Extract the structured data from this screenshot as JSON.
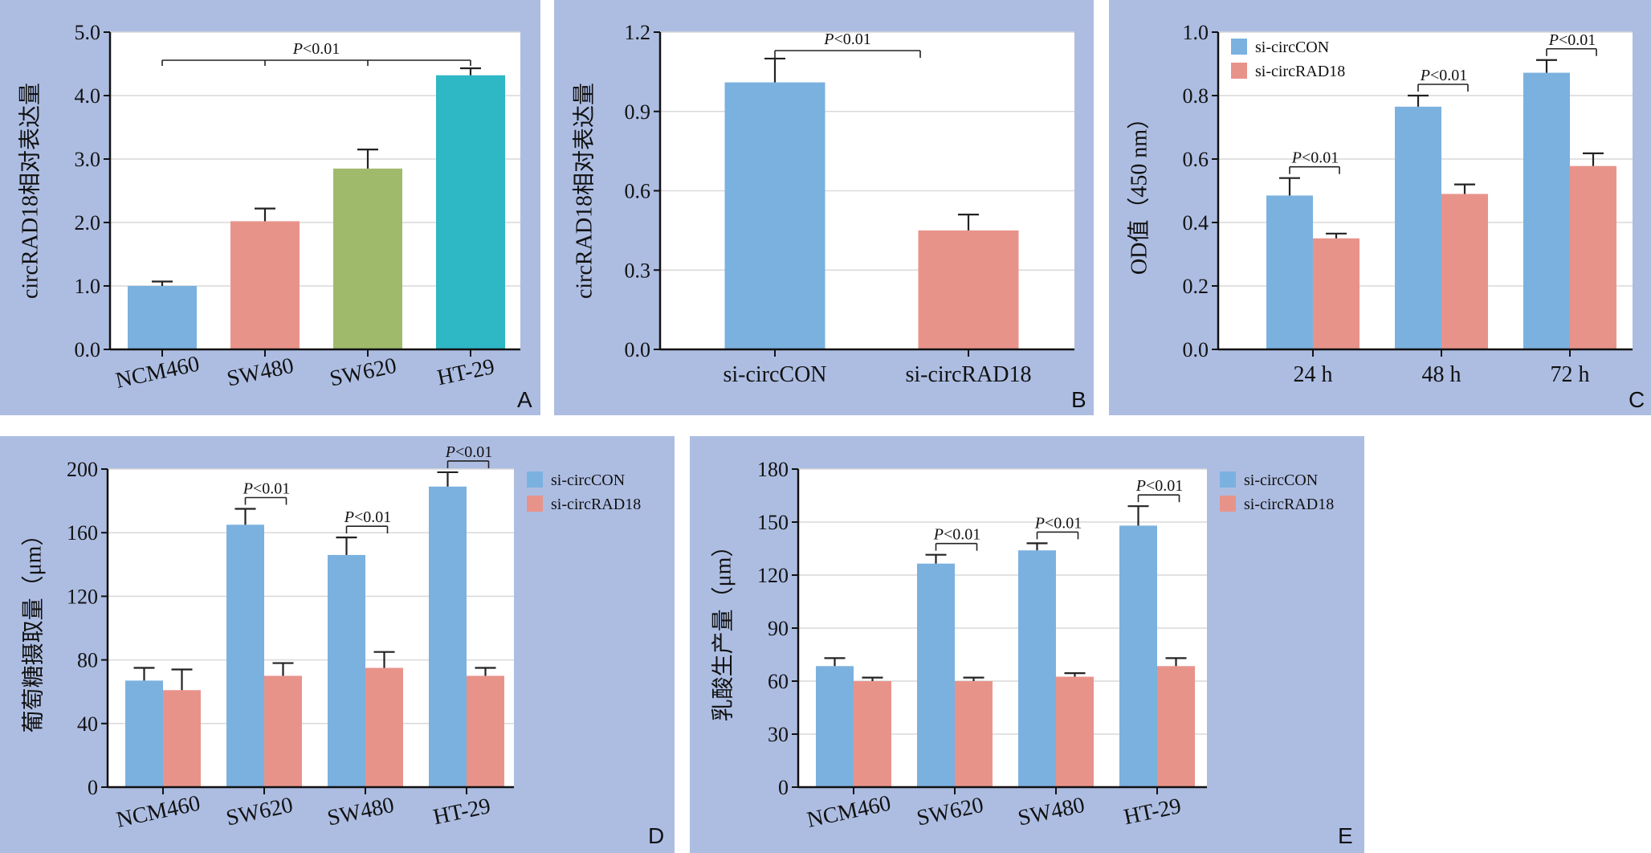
{
  "colors": {
    "panel_bg": "#adbde2",
    "plot_bg": "#ffffff",
    "grid": "#d9d9d9",
    "blue": "#7bb1df",
    "salmon": "#e8938a",
    "green": "#a0ba6c",
    "teal": "#2eb7c5"
  },
  "chart_data": [
    {
      "panel": "A",
      "type": "bar",
      "ylabel": "circRAD18相对表达量",
      "xlabel": "",
      "ylim": [
        0,
        5
      ],
      "yticks": [
        "0.0",
        "1.0",
        "2.0",
        "3.0",
        "4.0",
        "5.0"
      ],
      "categories": [
        "NCM460",
        "SW480",
        "SW620",
        "HT-29"
      ],
      "values": [
        1.0,
        2.02,
        2.85,
        4.32
      ],
      "errors": [
        0.07,
        0.2,
        0.3,
        0.11
      ],
      "bar_colors": [
        "#7bb1df",
        "#e8938a",
        "#a0ba6c",
        "#2eb7c5"
      ],
      "annotations": [
        {
          "text": "P<0.01",
          "italic_part": "P",
          "rest": "<0.01",
          "spans": "NCM460 to HT-29"
        }
      ],
      "grid": true
    },
    {
      "panel": "B",
      "type": "bar",
      "ylabel": "circRAD18相对表达量",
      "xlabel": "",
      "ylim": [
        0,
        1.2
      ],
      "yticks": [
        "0.0",
        "0.3",
        "0.6",
        "0.9",
        "1.2"
      ],
      "categories": [
        "si-circCON",
        "si-circRAD18"
      ],
      "values": [
        1.01,
        0.45
      ],
      "errors": [
        0.09,
        0.06
      ],
      "bar_colors": [
        "#7bb1df",
        "#e8938a"
      ],
      "annotations": [
        {
          "text": "P<0.01",
          "italic_part": "P",
          "rest": "<0.01",
          "spans": "si-circCON to si-circRAD18"
        }
      ],
      "grid": true
    },
    {
      "panel": "C",
      "type": "bar",
      "ylabel": "OD值（450 nm）",
      "xlabel": "",
      "ylim": [
        0,
        1.0
      ],
      "yticks": [
        "0.0",
        "0.2",
        "0.4",
        "0.6",
        "0.8",
        "1.0"
      ],
      "categories": [
        "24 h",
        "48 h",
        "72 h"
      ],
      "series": [
        {
          "name": "si-circCON",
          "values": [
            0.485,
            0.765,
            0.872
          ],
          "errors": [
            0.055,
            0.035,
            0.04
          ]
        },
        {
          "name": "si-circRAD18",
          "values": [
            0.35,
            0.49,
            0.578
          ],
          "errors": [
            0.015,
            0.03,
            0.04
          ]
        }
      ],
      "legend": "top-left",
      "annotations": [
        {
          "italic_part": "P",
          "rest": "<0.01",
          "category": "24 h"
        },
        {
          "italic_part": "P",
          "rest": "<0.01",
          "category": "48 h"
        },
        {
          "italic_part": "P",
          "rest": "<0.01",
          "category": "72 h"
        }
      ],
      "grid": true
    },
    {
      "panel": "D",
      "type": "bar",
      "ylabel": "葡萄糖摄取量（μm）",
      "xlabel": "",
      "ylim": [
        0,
        200
      ],
      "yticks": [
        "0",
        "40",
        "80",
        "120",
        "160",
        "200"
      ],
      "categories": [
        "NCM460",
        "SW620",
        "SW480",
        "HT-29"
      ],
      "series": [
        {
          "name": "si-circCON",
          "values": [
            67,
            165,
            146,
            189
          ],
          "errors": [
            8,
            10,
            11,
            9
          ]
        },
        {
          "name": "si-circRAD18",
          "values": [
            61,
            70,
            75,
            70
          ],
          "errors": [
            13,
            8,
            10,
            5
          ]
        }
      ],
      "legend": "right",
      "annotations": [
        {
          "italic_part": "P",
          "rest": "<0.01",
          "category": "SW620"
        },
        {
          "italic_part": "P",
          "rest": "<0.01",
          "category": "SW480"
        },
        {
          "italic_part": "P",
          "rest": "<0.01",
          "category": "HT-29"
        }
      ],
      "grid": true
    },
    {
      "panel": "E",
      "type": "bar",
      "ylabel": "乳酸生产量（μm）",
      "xlabel": "",
      "ylim": [
        0,
        180
      ],
      "yticks": [
        "0",
        "30",
        "60",
        "90",
        "120",
        "150",
        "180"
      ],
      "categories": [
        "NCM460",
        "SW620",
        "SW480",
        "HT-29"
      ],
      "series": [
        {
          "name": "si-circCON",
          "values": [
            68.5,
            126.5,
            134,
            148
          ],
          "errors": [
            4.5,
            5,
            4,
            11
          ]
        },
        {
          "name": "si-circRAD18",
          "values": [
            60,
            60,
            62.5,
            68.5
          ],
          "errors": [
            2,
            2,
            2,
            4.5
          ]
        }
      ],
      "legend": "right",
      "annotations": [
        {
          "italic_part": "P",
          "rest": "<0.01",
          "category": "SW620"
        },
        {
          "italic_part": "P",
          "rest": "<0.01",
          "category": "SW480"
        },
        {
          "italic_part": "P",
          "rest": "<0.01",
          "category": "HT-29"
        }
      ],
      "grid": true
    }
  ]
}
